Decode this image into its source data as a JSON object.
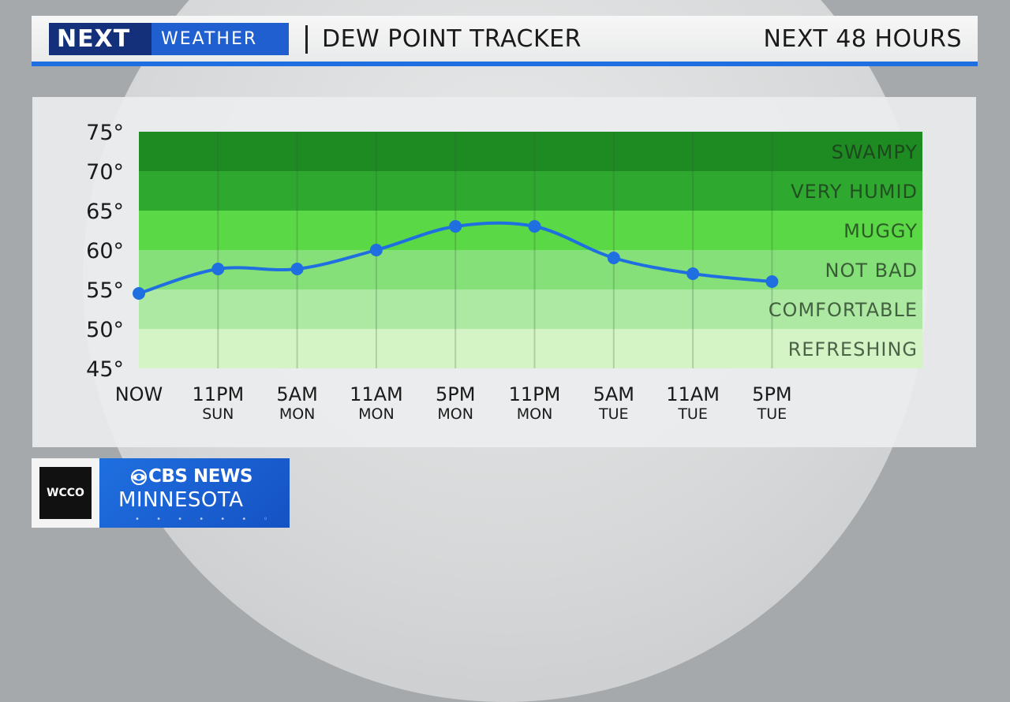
{
  "header": {
    "logo_next": "NEXT",
    "logo_weather": "WEATHER",
    "title": "DEW POINT TRACKER",
    "period": "NEXT 48 HOURS"
  },
  "brand": {
    "station": "WCCO",
    "network": "CBS NEWS",
    "region": "MINNESOTA"
  },
  "colors": {
    "accent": "#1f6fe0",
    "line": "#1f6fe0",
    "bands": [
      "#1e8a22",
      "#2ea82e",
      "#5bd845",
      "#86e07a",
      "#aee9a4",
      "#d4f4c6"
    ]
  },
  "chart_data": {
    "type": "line",
    "title": "DEW POINT TRACKER",
    "x": [
      {
        "time": "NOW",
        "day": ""
      },
      {
        "time": "11PM",
        "day": "SUN"
      },
      {
        "time": "5AM",
        "day": "MON"
      },
      {
        "time": "11AM",
        "day": "MON"
      },
      {
        "time": "5PM",
        "day": "MON"
      },
      {
        "time": "11PM",
        "day": "MON"
      },
      {
        "time": "5AM",
        "day": "TUE"
      },
      {
        "time": "11AM",
        "day": "TUE"
      },
      {
        "time": "5PM",
        "day": "TUE"
      }
    ],
    "values": [
      54.5,
      57.6,
      57.6,
      60,
      63,
      63,
      59,
      57,
      56
    ],
    "y_ticks": [
      "75°",
      "70°",
      "65°",
      "60°",
      "55°",
      "50°",
      "45°"
    ],
    "ylim": [
      45,
      75
    ],
    "bands": [
      {
        "label": "SWAMPY",
        "from": 70,
        "to": 75
      },
      {
        "label": "VERY HUMID",
        "from": 65,
        "to": 70
      },
      {
        "label": "MUGGY",
        "from": 60,
        "to": 65
      },
      {
        "label": "NOT BAD",
        "from": 55,
        "to": 60
      },
      {
        "label": "COMFORTABLE",
        "from": 50,
        "to": 55
      },
      {
        "label": "REFRESHING",
        "from": 45,
        "to": 50
      }
    ]
  }
}
